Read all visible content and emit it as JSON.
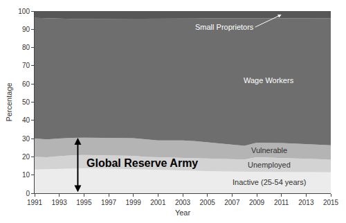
{
  "chart_data": {
    "type": "area",
    "stacked": true,
    "x_label": "Year",
    "y_label": "Percentage",
    "x": [
      1991,
      1992,
      1993,
      1994,
      1995,
      1996,
      1997,
      1998,
      1999,
      2000,
      2001,
      2002,
      2003,
      2004,
      2005,
      2006,
      2007,
      2008,
      2009,
      2010,
      2011,
      2012,
      2013,
      2014,
      2015
    ],
    "xlim": [
      1991,
      2015
    ],
    "xticks": [
      1991,
      1993,
      1995,
      1997,
      1999,
      2001,
      2003,
      2005,
      2007,
      2009,
      2011,
      2013,
      2015
    ],
    "ylim": [
      0,
      100
    ],
    "yticks": [
      0,
      10,
      20,
      30,
      40,
      50,
      60,
      70,
      80,
      90,
      100
    ],
    "grid": false,
    "series": [
      {
        "name": "Inactive (25-54 years)",
        "color": "#ececec",
        "values": [
          13.0,
          13.2,
          13.4,
          13.6,
          13.7,
          13.6,
          13.5,
          13.4,
          13.2,
          13.0,
          12.8,
          12.6,
          12.5,
          12.3,
          12.2,
          12.0,
          11.9,
          11.8,
          11.9,
          11.8,
          11.7,
          11.6,
          11.6,
          11.5,
          11.5
        ]
      },
      {
        "name": "Unemployed",
        "color": "#d3d3d3",
        "values": [
          7.0,
          6.6,
          6.9,
          7.2,
          7.3,
          7.3,
          7.3,
          7.3,
          7.3,
          7.0,
          7.0,
          7.1,
          7.1,
          7.1,
          7.0,
          7.0,
          6.9,
          6.7,
          7.9,
          7.8,
          7.7,
          7.6,
          7.4,
          7.2,
          6.8
        ]
      },
      {
        "name": "Vulnerable",
        "color": "#b4b4b4",
        "values": [
          10.0,
          9.8,
          9.7,
          9.6,
          9.5,
          9.6,
          9.6,
          9.6,
          9.7,
          9.5,
          9.2,
          9.3,
          9.4,
          9.2,
          8.8,
          8.4,
          7.8,
          7.5,
          8.0,
          8.2,
          8.2,
          8.1,
          8.0,
          7.9,
          8.0
        ]
      },
      {
        "name": "Wage Workers",
        "color": "#6e6e6e",
        "values": [
          66.3,
          66.5,
          65.8,
          65.3,
          65.2,
          65.2,
          65.3,
          65.5,
          65.6,
          66.3,
          66.9,
          66.9,
          66.9,
          67.3,
          68.0,
          68.6,
          69.5,
          70.1,
          68.3,
          68.3,
          68.5,
          68.8,
          69.1,
          69.5,
          69.8
        ]
      },
      {
        "name": "Small Proprietors",
        "color": "#575757",
        "values": [
          3.7,
          3.9,
          4.2,
          4.3,
          4.3,
          4.3,
          4.3,
          4.2,
          4.2,
          4.2,
          4.1,
          4.1,
          4.1,
          4.0,
          4.0,
          4.0,
          3.9,
          3.9,
          3.9,
          3.9,
          3.9,
          3.9,
          3.9,
          3.9,
          3.9
        ]
      }
    ],
    "annotations": [
      {
        "text": "Global Reserve Army"
      }
    ]
  }
}
